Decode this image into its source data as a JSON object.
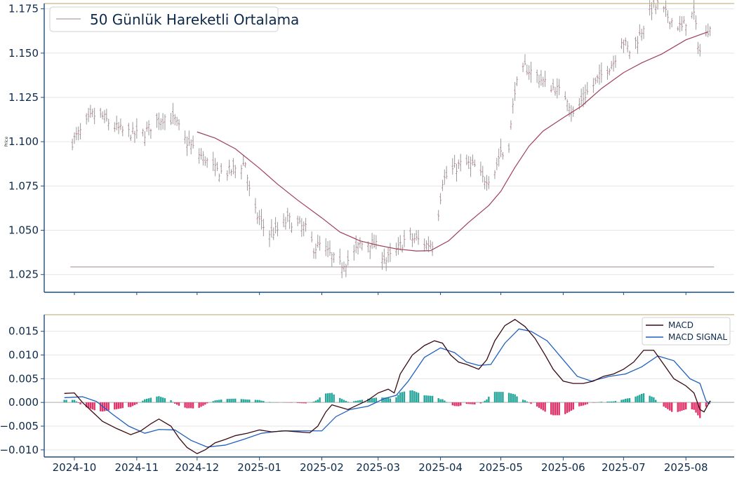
{
  "chart_data": [
    {
      "type": "candlestick",
      "ylabel": "Price",
      "ylim": [
        1.015,
        1.178
      ],
      "yticks": [
        "1.025",
        "1.050",
        "1.075",
        "1.100",
        "1.125",
        "1.150",
        "1.175"
      ],
      "x_date_range": [
        "2024-09-26",
        "2025-08-13"
      ],
      "legend": {
        "position": "top-left",
        "entries": [
          "50 Günlük Hareketli Ortalama"
        ]
      },
      "horizontal_lines": [
        1.0293,
        1.1832
      ],
      "colors": {
        "bar": "#9a9a9a",
        "ma": "#a0405a",
        "hline": "#b0a0a8"
      },
      "ma_anchors": [
        [
          "2024-12-01",
          1.1055
        ],
        [
          "2024-12-10",
          1.102
        ],
        [
          "2024-12-20",
          1.096
        ],
        [
          "2025-01-01",
          1.085
        ],
        [
          "2025-01-10",
          1.076
        ],
        [
          "2025-01-20",
          1.067
        ],
        [
          "2025-02-01",
          1.057
        ],
        [
          "2025-02-10",
          1.049
        ],
        [
          "2025-02-20",
          1.044
        ],
        [
          "2025-03-01",
          1.0415
        ],
        [
          "2025-03-10",
          1.0395
        ],
        [
          "2025-03-20",
          1.0383
        ],
        [
          "2025-03-27",
          1.0385
        ],
        [
          "2025-04-05",
          1.044
        ],
        [
          "2025-04-15",
          1.0545
        ],
        [
          "2025-04-25",
          1.064
        ],
        [
          "2025-05-01",
          1.072
        ],
        [
          "2025-05-08",
          1.0855
        ],
        [
          "2025-05-15",
          1.0975
        ],
        [
          "2025-05-22",
          1.106
        ],
        [
          "2025-06-01",
          1.1135
        ],
        [
          "2025-06-10",
          1.12
        ],
        [
          "2025-06-20",
          1.13
        ],
        [
          "2025-07-01",
          1.139
        ],
        [
          "2025-07-10",
          1.1445
        ],
        [
          "2025-07-20",
          1.1495
        ],
        [
          "2025-08-01",
          1.1575
        ],
        [
          "2025-08-12",
          1.162
        ]
      ],
      "price_anchors": [
        [
          "2024-09-30",
          1.1
        ],
        [
          "2024-10-05",
          1.107
        ],
        [
          "2024-10-10",
          1.115
        ],
        [
          "2024-10-15",
          1.114
        ],
        [
          "2024-10-20",
          1.109
        ],
        [
          "2024-10-25",
          1.106
        ],
        [
          "2024-11-01",
          1.104
        ],
        [
          "2024-11-05",
          1.105
        ],
        [
          "2024-11-10",
          1.111
        ],
        [
          "2024-11-15",
          1.114
        ],
        [
          "2024-11-20",
          1.112
        ],
        [
          "2024-11-25",
          1.101
        ],
        [
          "2024-11-30",
          1.095
        ],
        [
          "2024-12-05",
          1.09
        ],
        [
          "2024-12-10",
          1.084
        ],
        [
          "2024-12-15",
          1.082
        ],
        [
          "2024-12-20",
          1.085
        ],
        [
          "2024-12-25",
          1.088
        ],
        [
          "2024-12-28",
          1.064
        ],
        [
          "2025-01-01",
          1.056
        ],
        [
          "2025-01-05",
          1.048
        ],
        [
          "2025-01-10",
          1.05
        ],
        [
          "2025-01-15",
          1.056
        ],
        [
          "2025-01-20",
          1.053
        ],
        [
          "2025-01-25",
          1.05
        ],
        [
          "2025-01-28",
          1.04
        ],
        [
          "2025-02-01",
          1.042
        ],
        [
          "2025-02-05",
          1.036
        ],
        [
          "2025-02-10",
          1.03
        ],
        [
          "2025-02-15",
          1.034
        ],
        [
          "2025-02-20",
          1.042
        ],
        [
          "2025-02-25",
          1.043
        ],
        [
          "2025-03-01",
          1.04
        ],
        [
          "2025-03-05",
          1.033
        ],
        [
          "2025-03-10",
          1.038
        ],
        [
          "2025-03-15",
          1.046
        ],
        [
          "2025-03-20",
          1.045
        ],
        [
          "2025-03-25",
          1.042
        ],
        [
          "2025-03-29",
          1.043
        ],
        [
          "2025-04-02",
          1.078
        ],
        [
          "2025-04-07",
          1.084
        ],
        [
          "2025-04-12",
          1.088
        ],
        [
          "2025-04-18",
          1.086
        ],
        [
          "2025-04-22",
          1.079
        ],
        [
          "2025-04-27",
          1.08
        ],
        [
          "2025-05-01",
          1.095
        ],
        [
          "2025-05-04",
          1.088
        ],
        [
          "2025-05-08",
          1.13
        ],
        [
          "2025-05-13",
          1.142
        ],
        [
          "2025-05-18",
          1.138
        ],
        [
          "2025-05-23",
          1.133
        ],
        [
          "2025-05-28",
          1.13
        ],
        [
          "2025-06-03",
          1.125
        ],
        [
          "2025-06-06",
          1.115
        ],
        [
          "2025-06-11",
          1.125
        ],
        [
          "2025-06-16",
          1.132
        ],
        [
          "2025-06-21",
          1.139
        ],
        [
          "2025-06-26",
          1.145
        ],
        [
          "2025-06-30",
          1.158
        ],
        [
          "2025-07-04",
          1.151
        ],
        [
          "2025-07-09",
          1.16
        ],
        [
          "2025-07-14",
          1.174
        ],
        [
          "2025-07-18",
          1.177
        ],
        [
          "2025-07-22",
          1.172
        ],
        [
          "2025-07-26",
          1.167
        ],
        [
          "2025-07-30",
          1.164
        ],
        [
          "2025-08-02",
          1.17
        ],
        [
          "2025-08-05",
          1.172
        ],
        [
          "2025-08-07",
          1.156
        ],
        [
          "2025-08-09",
          1.146
        ],
        [
          "2025-08-11",
          1.16
        ],
        [
          "2025-08-13",
          1.167
        ]
      ]
    },
    {
      "type": "line+bar",
      "ylim": [
        -0.0115,
        0.0185
      ],
      "yticks": [
        "−0.010",
        "−0.005",
        "0.000",
        "0.005",
        "0.010",
        "0.015"
      ],
      "xticks": [
        "2024-10",
        "2024-11",
        "2024-12",
        "2025-01",
        "2025-02",
        "2025-03",
        "2025-04",
        "2025-05",
        "2025-06",
        "2025-07",
        "2025-08"
      ],
      "legend": {
        "position": "top-right",
        "entries": [
          "MACD",
          "MACD SIGNAL"
        ]
      },
      "colors": {
        "macd": "#3a0a12",
        "signal": "#1f5fbf",
        "hist_pos": "#26a69a",
        "hist_neg": "#e0336a"
      },
      "macd": [
        [
          "2024-09-26",
          0.0019
        ],
        [
          "2024-10-01",
          0.002
        ],
        [
          "2024-10-05",
          0.0
        ],
        [
          "2024-10-10",
          -0.002
        ],
        [
          "2024-10-15",
          -0.004
        ],
        [
          "2024-10-22",
          -0.0055
        ],
        [
          "2024-10-29",
          -0.0068
        ],
        [
          "2024-11-03",
          -0.006
        ],
        [
          "2024-11-08",
          -0.0045
        ],
        [
          "2024-11-12",
          -0.0035
        ],
        [
          "2024-11-18",
          -0.005
        ],
        [
          "2024-11-22",
          -0.0075
        ],
        [
          "2024-11-26",
          -0.0095
        ],
        [
          "2024-12-01",
          -0.0108
        ],
        [
          "2024-12-05",
          -0.01
        ],
        [
          "2024-12-10",
          -0.0085
        ],
        [
          "2024-12-15",
          -0.0078
        ],
        [
          "2024-12-20",
          -0.007
        ],
        [
          "2024-12-26",
          -0.0065
        ],
        [
          "2025-01-01",
          -0.0058
        ],
        [
          "2025-01-07",
          -0.0062
        ],
        [
          "2025-01-14",
          -0.006
        ],
        [
          "2025-01-20",
          -0.0062
        ],
        [
          "2025-01-26",
          -0.0064
        ],
        [
          "2025-01-30",
          -0.005
        ],
        [
          "2025-02-03",
          -0.002
        ],
        [
          "2025-02-06",
          -0.0005
        ],
        [
          "2025-02-10",
          -0.001
        ],
        [
          "2025-02-14",
          -0.0015
        ],
        [
          "2025-02-19",
          -0.0005
        ],
        [
          "2025-02-24",
          0.0005
        ],
        [
          "2025-03-01",
          0.002
        ],
        [
          "2025-03-06",
          0.0028
        ],
        [
          "2025-03-09",
          0.002
        ],
        [
          "2025-03-12",
          0.006
        ],
        [
          "2025-03-18",
          0.01
        ],
        [
          "2025-03-24",
          0.012
        ],
        [
          "2025-03-29",
          0.013
        ],
        [
          "2025-04-02",
          0.0125
        ],
        [
          "2025-04-06",
          0.01
        ],
        [
          "2025-04-10",
          0.0085
        ],
        [
          "2025-04-14",
          0.008
        ],
        [
          "2025-04-20",
          0.007
        ],
        [
          "2025-04-24",
          0.009
        ],
        [
          "2025-04-28",
          0.013
        ],
        [
          "2025-05-03",
          0.0162
        ],
        [
          "2025-05-08",
          0.0175
        ],
        [
          "2025-05-13",
          0.016
        ],
        [
          "2025-05-18",
          0.0135
        ],
        [
          "2025-05-23",
          0.01
        ],
        [
          "2025-05-27",
          0.007
        ],
        [
          "2025-06-01",
          0.0045
        ],
        [
          "2025-06-06",
          0.004
        ],
        [
          "2025-06-11",
          0.004
        ],
        [
          "2025-06-16",
          0.0045
        ],
        [
          "2025-06-21",
          0.0055
        ],
        [
          "2025-06-26",
          0.006
        ],
        [
          "2025-07-01",
          0.007
        ],
        [
          "2025-07-06",
          0.0085
        ],
        [
          "2025-07-11",
          0.011
        ],
        [
          "2025-07-16",
          0.011
        ],
        [
          "2025-07-21",
          0.008
        ],
        [
          "2025-07-26",
          0.005
        ],
        [
          "2025-08-01",
          0.0035
        ],
        [
          "2025-08-05",
          0.002
        ],
        [
          "2025-08-08",
          -0.0015
        ],
        [
          "2025-08-10",
          -0.002
        ],
        [
          "2025-08-13",
          0.0003
        ]
      ],
      "signal": [
        [
          "2024-09-26",
          0.001
        ],
        [
          "2024-10-05",
          0.0012
        ],
        [
          "2024-10-12",
          0.0002
        ],
        [
          "2024-10-20",
          -0.0025
        ],
        [
          "2024-10-28",
          -0.005
        ],
        [
          "2024-11-05",
          -0.0065
        ],
        [
          "2024-11-12",
          -0.0057
        ],
        [
          "2024-11-20",
          -0.0058
        ],
        [
          "2024-11-28",
          -0.008
        ],
        [
          "2024-12-06",
          -0.0094
        ],
        [
          "2024-12-15",
          -0.009
        ],
        [
          "2024-12-24",
          -0.0078
        ],
        [
          "2025-01-02",
          -0.0065
        ],
        [
          "2025-01-12",
          -0.006
        ],
        [
          "2025-01-22",
          -0.006
        ],
        [
          "2025-02-01",
          -0.006
        ],
        [
          "2025-02-08",
          -0.003
        ],
        [
          "2025-02-15",
          -0.0015
        ],
        [
          "2025-02-24",
          -0.0008
        ],
        [
          "2025-03-04",
          0.0008
        ],
        [
          "2025-03-10",
          0.0015
        ],
        [
          "2025-03-16",
          0.0045
        ],
        [
          "2025-03-24",
          0.0095
        ],
        [
          "2025-04-01",
          0.0115
        ],
        [
          "2025-04-08",
          0.0105
        ],
        [
          "2025-04-14",
          0.0085
        ],
        [
          "2025-04-20",
          0.0078
        ],
        [
          "2025-04-26",
          0.008
        ],
        [
          "2025-05-03",
          0.0125
        ],
        [
          "2025-05-10",
          0.0155
        ],
        [
          "2025-05-16",
          0.015
        ],
        [
          "2025-05-24",
          0.013
        ],
        [
          "2025-06-01",
          0.009
        ],
        [
          "2025-06-08",
          0.0055
        ],
        [
          "2025-06-15",
          0.0045
        ],
        [
          "2025-06-24",
          0.0055
        ],
        [
          "2025-07-02",
          0.006
        ],
        [
          "2025-07-10",
          0.0075
        ],
        [
          "2025-07-18",
          0.0098
        ],
        [
          "2025-07-26",
          0.0088
        ],
        [
          "2025-08-03",
          0.005
        ],
        [
          "2025-08-08",
          0.004
        ],
        [
          "2025-08-11",
          0.0003
        ],
        [
          "2025-08-13",
          -0.0003
        ]
      ]
    }
  ]
}
